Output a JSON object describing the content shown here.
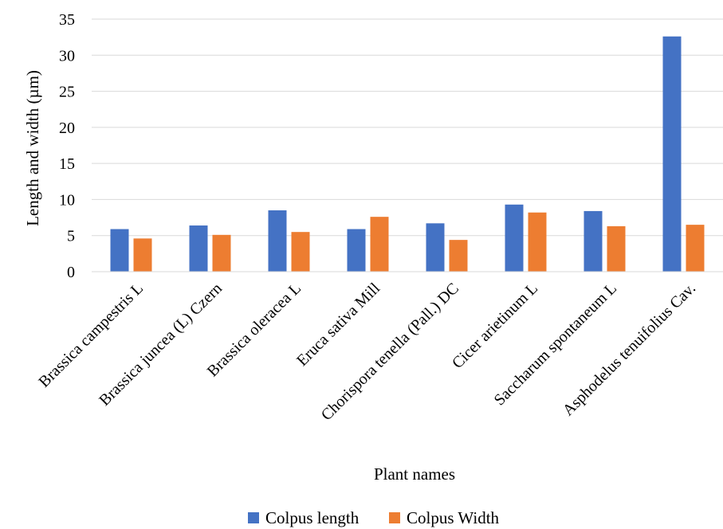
{
  "chart_data": {
    "type": "bar",
    "title": "",
    "xlabel": "Plant names",
    "ylabel": "Length and width (µm)",
    "ylim": [
      0,
      35
    ],
    "yticks": [
      0,
      5,
      10,
      15,
      20,
      25,
      30,
      35
    ],
    "grid": true,
    "legend_position": "bottom",
    "categories": [
      "Brassica campestris L",
      "Brassica juncea (L) Czern",
      "Brassica oleracea L",
      "Eruca sativa Mill",
      "Chorispora tenella (Pall.) DC",
      "Cicer arietinum L",
      "Saccharum spontaneum L",
      "Asphodelus tenuifolius Cav."
    ],
    "series": [
      {
        "name": "Colpus length",
        "color": "#4472C4",
        "values": [
          5.9,
          6.4,
          8.5,
          5.9,
          6.7,
          9.3,
          8.4,
          32.6
        ]
      },
      {
        "name": "Colpus Width",
        "color": "#ED7D31",
        "values": [
          4.6,
          5.1,
          5.5,
          7.6,
          4.4,
          8.2,
          6.3,
          6.5
        ]
      }
    ]
  }
}
